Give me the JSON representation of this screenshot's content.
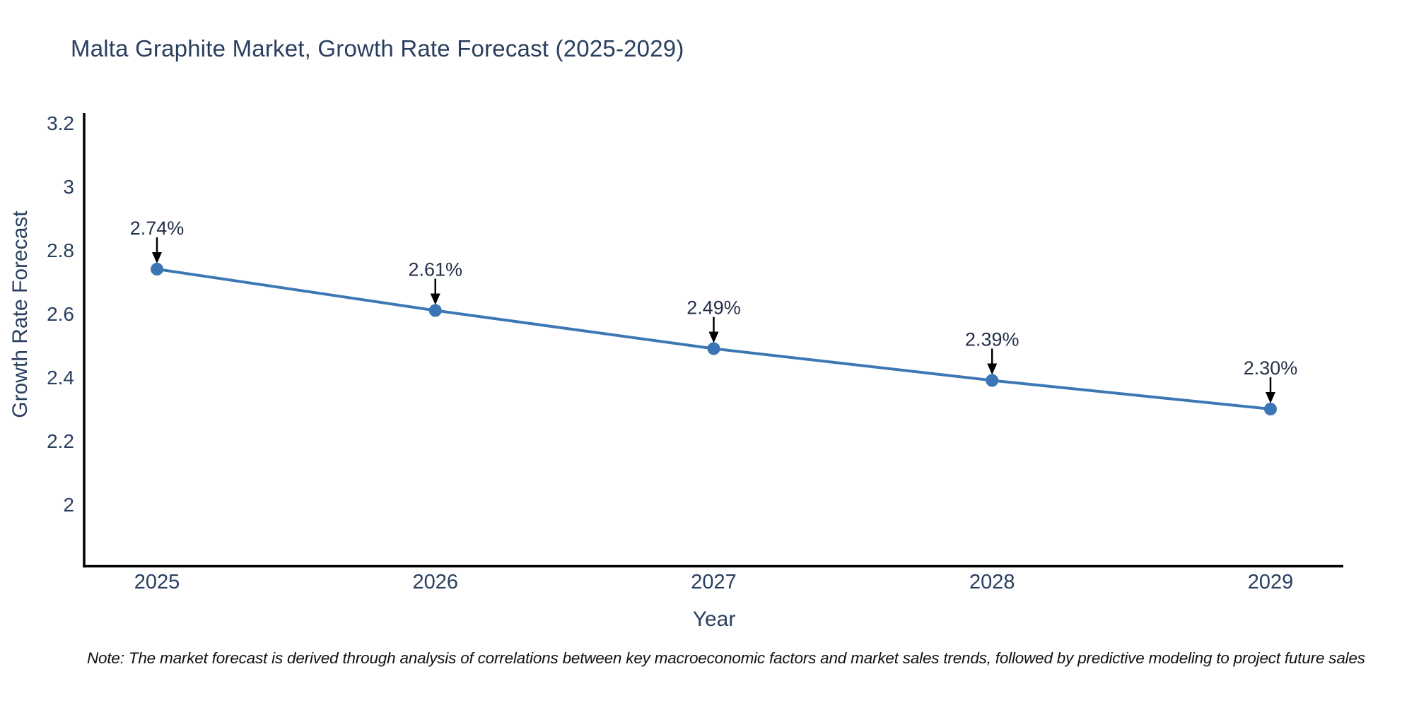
{
  "chart_data": {
    "type": "line",
    "title": "Malta Graphite Market, Growth Rate Forecast (2025-2029)",
    "xlabel": "Year",
    "ylabel": "Growth Rate Forecast",
    "categories": [
      "2025",
      "2026",
      "2027",
      "2028",
      "2029"
    ],
    "series": [
      {
        "name": "Growth Rate Forecast",
        "values": [
          2.74,
          2.61,
          2.49,
          2.39,
          2.3
        ],
        "point_labels": [
          "2.74%",
          "2.61%",
          "2.49%",
          "2.39%",
          "2.30%"
        ]
      }
    ],
    "ytick_labels": [
      "3.2",
      "3",
      "2.8",
      "2.6",
      "2.4",
      "2.2",
      "2"
    ],
    "ytick_values": [
      3.2,
      3.0,
      2.8,
      2.6,
      2.4,
      2.2,
      2.0
    ],
    "ylim": [
      1.8,
      3.24
    ],
    "grid": false,
    "legend_position": "none",
    "annotations": "value labels above points with downward arrows",
    "colors": {
      "line": "#3d78b4",
      "marker": "#3a76b3",
      "axis": "#000000",
      "chart_text": "#2a3f5f",
      "annotation_text": "#25314a",
      "arrow": "#000000",
      "background": "#ffffff"
    },
    "note": "Note: The market forecast is derived through analysis of correlations between key macroeconomic factors and market sales trends, followed by predictive modeling to project future sales"
  }
}
